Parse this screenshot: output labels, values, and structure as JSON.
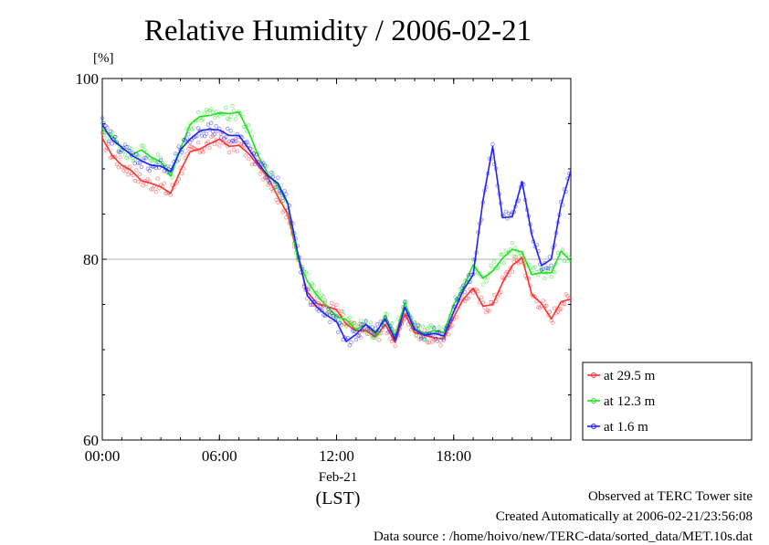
{
  "title": "Relative Humidity / 2006-02-21",
  "y_unit": "[%]",
  "x_date": "Feb-21",
  "x_label": "(LST)",
  "footer": {
    "line1": "Observed at TERC Tower site",
    "line2": "Created Automatically at 2006-02-21/23:56:08",
    "line3": "Data source : /home/hoivo/new/TERC-data/sorted_data/MET.10s.dat"
  },
  "chart_data": {
    "type": "line",
    "title": "Relative Humidity / 2006-02-21",
    "ylabel": "[%]",
    "xlabel": "(LST)",
    "xlim": [
      "00:00",
      "24:00"
    ],
    "ylim": [
      60,
      100
    ],
    "x_ticks": [
      "00:00",
      "06:00",
      "12:00",
      "18:00"
    ],
    "y_ticks": [
      60,
      80,
      100
    ],
    "grid": "horizontal",
    "legend_position": "right",
    "x_hours": [
      0,
      0.5,
      1,
      1.5,
      2,
      2.5,
      3,
      3.5,
      4,
      4.5,
      5,
      5.5,
      6,
      6.5,
      7,
      7.5,
      8,
      8.5,
      9,
      9.5,
      10,
      10.5,
      11,
      11.5,
      12,
      12.5,
      13,
      13.5,
      14,
      14.5,
      15,
      15.5,
      16,
      16.5,
      17,
      17.5,
      18,
      18.5,
      19,
      19.5,
      20,
      20.5,
      21,
      21.5,
      22,
      22.5,
      23,
      23.5,
      24
    ],
    "series": [
      {
        "name": "at 29.5 m",
        "color": "#ff3030",
        "values": [
          93.4,
          91.5,
          90.4,
          89.8,
          88.7,
          88.4,
          88.0,
          87.3,
          89.8,
          91.9,
          92.2,
          92.8,
          93.3,
          92.5,
          92.6,
          91.7,
          90.3,
          89.0,
          86.9,
          85.0,
          80.3,
          76.4,
          75.1,
          74.8,
          74.4,
          72.8,
          72.1,
          72.1,
          71.4,
          72.8,
          70.8,
          74.0,
          71.9,
          71.6,
          71.3,
          71.2,
          73.6,
          75.6,
          76.8,
          74.8,
          75.0,
          77.4,
          79.3,
          80.2,
          76.1,
          75.1,
          73.4,
          75.3,
          75.6
        ]
      },
      {
        "name": "at 12.3 m",
        "color": "#20e020",
        "values": [
          94.4,
          93.6,
          92.3,
          91.6,
          92.1,
          91.3,
          90.8,
          89.2,
          92.2,
          94.9,
          95.8,
          95.9,
          96.2,
          96.1,
          96.3,
          94.1,
          91.4,
          89.4,
          88.1,
          86.1,
          80.1,
          77.6,
          76.0,
          74.8,
          73.7,
          73.3,
          72.2,
          72.8,
          71.6,
          73.8,
          71.4,
          75.2,
          72.4,
          71.8,
          72.1,
          71.9,
          75.0,
          76.9,
          79.4,
          77.9,
          78.7,
          80.1,
          81.1,
          80.8,
          78.3,
          78.5,
          78.5,
          80.9,
          79.8
        ]
      },
      {
        "name": "at 1.6 m",
        "color": "#2020ff",
        "values": [
          94.9,
          93.2,
          92.4,
          91.5,
          90.9,
          90.4,
          90.3,
          89.7,
          92.1,
          93.3,
          94.2,
          94.4,
          94.3,
          93.7,
          93.7,
          92.2,
          90.6,
          89.2,
          88.4,
          86.2,
          80.8,
          76.0,
          74.7,
          73.8,
          73.1,
          70.9,
          71.7,
          72.8,
          71.9,
          73.4,
          71.1,
          74.7,
          72.2,
          71.6,
          71.8,
          71.5,
          74.2,
          76.6,
          78.3,
          86.5,
          92.5,
          84.6,
          84.7,
          88.6,
          82.7,
          79.3,
          80.0,
          86.0,
          89.8
        ]
      }
    ]
  }
}
